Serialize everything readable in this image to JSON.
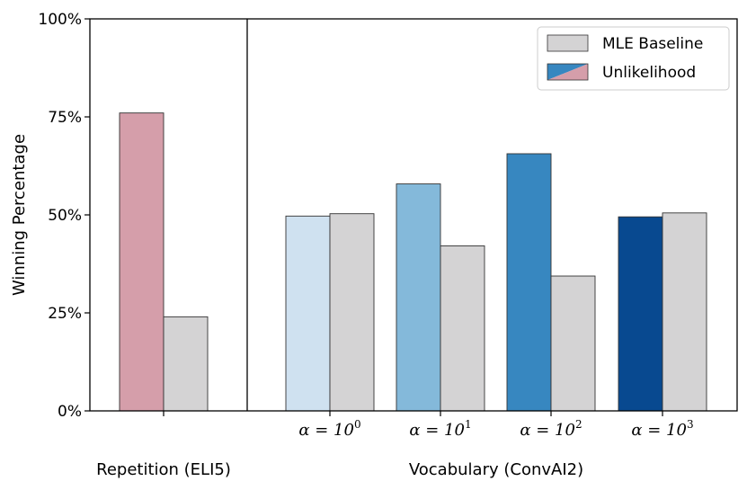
{
  "chart_data": {
    "type": "bar",
    "ylabel": "Winning Percentage",
    "ylim": [
      0,
      100
    ],
    "yticks": [
      0,
      25,
      50,
      75,
      100
    ],
    "ytick_labels": [
      "0%",
      "25%",
      "50%",
      "75%",
      "100%"
    ],
    "grid": false,
    "legend": {
      "placement": "top-right",
      "entries": [
        {
          "label": "MLE Baseline",
          "color": "#d4d3d4"
        },
        {
          "label": "Unlikelihood",
          "color": "#3787c0",
          "color2": "#d59eaa"
        }
      ]
    },
    "panels": [
      {
        "group_label": "Repetition (ELI5)",
        "categories": [
          {
            "tick_label": "",
            "unlikelihood": 76,
            "mle": 24,
            "color": "#d59eaa"
          }
        ]
      },
      {
        "group_label": "Vocabulary (ConvAI2)",
        "categories": [
          {
            "tick_label": "α = 10",
            "exponent": "0",
            "unlikelihood": 49.7,
            "mle": 50.3,
            "color": "#cfe1f0"
          },
          {
            "tick_label": "α = 10",
            "exponent": "1",
            "unlikelihood": 57.9,
            "mle": 42.1,
            "color": "#84b9da"
          },
          {
            "tick_label": "α = 10",
            "exponent": "2",
            "unlikelihood": 65.6,
            "mle": 34.4,
            "color": "#3787c0"
          },
          {
            "tick_label": "α = 10",
            "exponent": "3",
            "unlikelihood": 49.5,
            "mle": 50.5,
            "color": "#084990"
          }
        ]
      }
    ]
  }
}
